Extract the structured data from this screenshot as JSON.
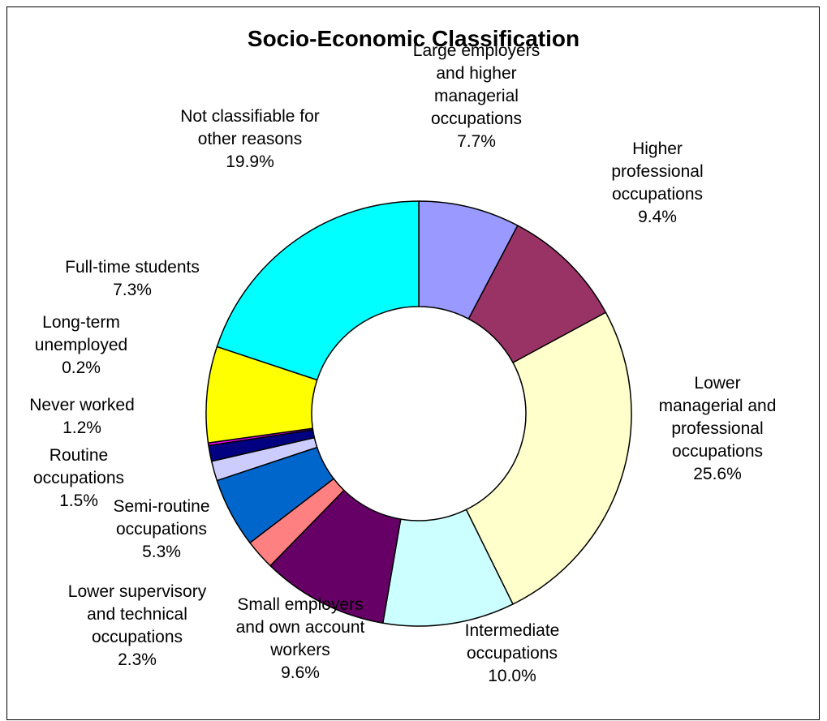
{
  "chart_data": {
    "type": "pie",
    "subtype": "donut",
    "title": "Socio-Economic Classification",
    "slices": [
      {
        "label": [
          "Large employers",
          "and higher",
          "managerial",
          "occupations"
        ],
        "value": 7.7,
        "value_label": "7.7%",
        "color": "#9999FF"
      },
      {
        "label": [
          "Higher",
          "professional",
          "occupations"
        ],
        "value": 9.4,
        "value_label": "9.4%",
        "color": "#993366"
      },
      {
        "label": [
          "Lower",
          "managerial and",
          "professional",
          "occupations"
        ],
        "value": 25.6,
        "value_label": "25.6%",
        "color": "#FFFFCC"
      },
      {
        "label": [
          "Intermediate",
          "occupations"
        ],
        "value": 10.0,
        "value_label": "10.0%",
        "color": "#CCFFFF"
      },
      {
        "label": [
          "Small employers",
          "and own account",
          "workers"
        ],
        "value": 9.6,
        "value_label": "9.6%",
        "color": "#660066"
      },
      {
        "label": [
          "Lower supervisory",
          "and technical",
          "occupations"
        ],
        "value": 2.3,
        "value_label": "2.3%",
        "color": "#FF8080"
      },
      {
        "label": [
          "Semi-routine",
          "occupations"
        ],
        "value": 5.3,
        "value_label": "5.3%",
        "color": "#0066CC"
      },
      {
        "label": [
          "Routine",
          "occupations"
        ],
        "value": 1.5,
        "value_label": "1.5%",
        "color": "#CCCCFF"
      },
      {
        "label": [
          "Never worked"
        ],
        "value": 1.2,
        "value_label": "1.2%",
        "color": "#000080"
      },
      {
        "label": [
          "Long-term",
          "unemployed"
        ],
        "value": 0.2,
        "value_label": "0.2%",
        "color": "#FF00FF"
      },
      {
        "label": [
          "Full-time students"
        ],
        "value": 7.3,
        "value_label": "7.3%",
        "color": "#FFFF00"
      },
      {
        "label": [
          "Not classifiable for",
          "other reasons"
        ],
        "value": 19.9,
        "value_label": "19.9%",
        "color": "#00FFFF"
      }
    ],
    "legend": "none"
  }
}
